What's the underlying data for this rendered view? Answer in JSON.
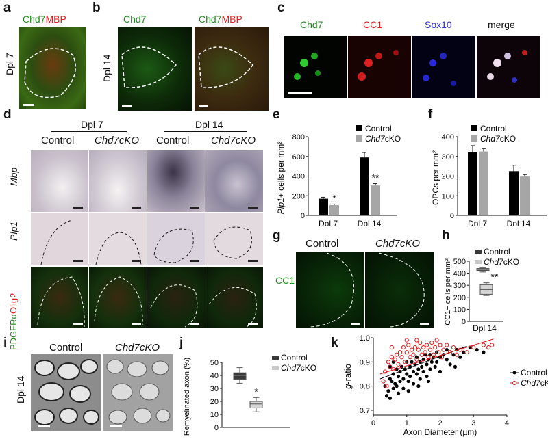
{
  "panels": {
    "a": {
      "letter": "a",
      "row_label": "Dpl 7",
      "stain_green": "Chd7",
      "stain_red": "MBP"
    },
    "b": {
      "letter": "b",
      "row_label": "Dpl 14",
      "left_title": "Chd7",
      "right_green": "Chd7",
      "right_red": "MBP"
    },
    "c": {
      "letter": "c",
      "titles": [
        "Chd7",
        "CC1",
        "Sox10",
        "merge"
      ]
    },
    "d": {
      "letter": "d",
      "group1": "Dpl 7",
      "group2": "Dpl 14",
      "cols": [
        "Control",
        "Chd7cKO",
        "Control",
        "Chd7cKO"
      ],
      "row_mbp": "Mbp",
      "row_plp1": "Plp1",
      "row_pdgfr_green": "PDGFRα",
      "row_pdgfr_red": "Olig2"
    },
    "e": {
      "letter": "e"
    },
    "f": {
      "letter": "f"
    },
    "g": {
      "letter": "g",
      "cols": [
        "Control",
        "Chd7cKO"
      ],
      "row_label": "CC1"
    },
    "h": {
      "letter": "h"
    },
    "i": {
      "letter": "i",
      "row_label": "Dpl 14",
      "cols": [
        "Control",
        "Chd7cKO"
      ]
    },
    "j": {
      "letter": "j"
    },
    "k": {
      "letter": "k"
    }
  },
  "colors": {
    "control": "#000000",
    "cko": "#a6a6a6",
    "green": "#1f8a1f",
    "red": "#e21b1b",
    "blue": "#2a2ad6",
    "k_cko": "#e0181b"
  },
  "chart_data": [
    {
      "id": "e",
      "type": "bar",
      "categories": [
        "Dpl 7",
        "Dpl 14"
      ],
      "series": [
        {
          "name": "Control",
          "values": [
            170,
            590
          ],
          "err": [
            15,
            50
          ]
        },
        {
          "name": "Chd7cKO",
          "values": [
            105,
            305
          ],
          "err": [
            10,
            18
          ]
        }
      ],
      "ylabel": "Plp1+ cells per mm²",
      "ylim": [
        0,
        800
      ],
      "yticks": [
        0,
        200,
        400,
        600,
        800
      ],
      "annotations": [
        "*",
        "**"
      ],
      "legend": "top-right"
    },
    {
      "id": "f",
      "type": "bar",
      "categories": [
        "Dpl 7",
        "Dpl 14"
      ],
      "series": [
        {
          "name": "Control",
          "values": [
            320,
            225
          ],
          "err": [
            35,
            30
          ]
        },
        {
          "name": "Chd7cKO",
          "values": [
            325,
            198
          ],
          "err": [
            15,
            10
          ]
        }
      ],
      "ylabel": "OPCs per mm²",
      "ylim": [
        0,
        400
      ],
      "yticks": [
        0,
        100,
        200,
        300,
        400
      ],
      "legend": "top-right"
    },
    {
      "id": "h",
      "type": "box",
      "categories": [
        "Dpl 14"
      ],
      "series": [
        {
          "name": "Control",
          "q1": 420,
          "median": 428,
          "q3": 440,
          "whisker_low": 410,
          "whisker_high": 445
        },
        {
          "name": "Chd7cKO",
          "q1": 225,
          "median": 265,
          "q3": 305,
          "whisker_low": 215,
          "whisker_high": 320
        }
      ],
      "ylabel": "CC1+ cells per mm²",
      "ylim": [
        0,
        500
      ],
      "yticks": [
        0,
        100,
        200,
        300,
        400,
        500
      ],
      "annotations": [
        "**"
      ],
      "legend": "top-right"
    },
    {
      "id": "j",
      "type": "box",
      "series": [
        {
          "name": "Control",
          "q1": 37,
          "median": 40,
          "q3": 42,
          "whisker_low": 34,
          "whisker_high": 46
        },
        {
          "name": "Chd7cKO",
          "q1": 15,
          "median": 18,
          "q3": 20,
          "whisker_low": 12,
          "whisker_high": 23
        }
      ],
      "ylabel": "Remyelinated axon (%)",
      "ylim": [
        0,
        50
      ],
      "yticks": [
        0,
        10,
        20,
        30,
        40,
        50
      ],
      "annotations": [
        "*"
      ],
      "legend": "top-right"
    },
    {
      "id": "k",
      "type": "scatter",
      "xlabel": "Axon Diameter (µm)",
      "ylabel": "g-ratio",
      "xlim": [
        0,
        4
      ],
      "ylim": [
        0.68,
        1.0
      ],
      "xticks": [
        0,
        1,
        2,
        3,
        4
      ],
      "yticks": [
        0.7,
        0.8,
        0.9,
        1.0
      ],
      "legend": "right",
      "series": [
        {
          "name": "Control",
          "marker": "filled",
          "trend": [
            [
              0.2,
              0.83
            ],
            [
              2.8,
              0.965
            ]
          ],
          "points": [
            [
              0.35,
              0.8
            ],
            [
              0.4,
              0.76
            ],
            [
              0.45,
              0.78
            ],
            [
              0.5,
              0.75
            ],
            [
              0.5,
              0.83
            ],
            [
              0.55,
              0.82
            ],
            [
              0.6,
              0.79
            ],
            [
              0.6,
              0.85
            ],
            [
              0.65,
              0.81
            ],
            [
              0.7,
              0.87
            ],
            [
              0.7,
              0.8
            ],
            [
              0.75,
              0.84
            ],
            [
              0.8,
              0.86
            ],
            [
              0.8,
              0.82
            ],
            [
              0.85,
              0.88
            ],
            [
              0.9,
              0.83
            ],
            [
              0.9,
              0.79
            ],
            [
              0.95,
              0.87
            ],
            [
              1.0,
              0.85
            ],
            [
              1.0,
              0.9
            ],
            [
              1.05,
              0.82
            ],
            [
              1.1,
              0.88
            ],
            [
              1.1,
              0.84
            ],
            [
              1.15,
              0.9
            ],
            [
              1.2,
              0.86
            ],
            [
              1.2,
              0.81
            ],
            [
              1.25,
              0.89
            ],
            [
              1.3,
              0.92
            ],
            [
              1.3,
              0.85
            ],
            [
              1.35,
              0.87
            ],
            [
              1.4,
              0.9
            ],
            [
              1.4,
              0.83
            ],
            [
              1.45,
              0.88
            ],
            [
              1.5,
              0.91
            ],
            [
              1.5,
              0.86
            ],
            [
              1.55,
              0.93
            ],
            [
              1.6,
              0.89
            ],
            [
              1.6,
              0.84
            ],
            [
              1.65,
              0.91
            ],
            [
              1.7,
              0.93
            ],
            [
              1.7,
              0.87
            ],
            [
              1.75,
              0.9
            ],
            [
              1.8,
              0.92
            ],
            [
              1.85,
              0.88
            ],
            [
              1.9,
              0.94
            ],
            [
              1.9,
              0.9
            ],
            [
              2.0,
              0.92
            ],
            [
              2.0,
              0.86
            ],
            [
              2.1,
              0.93
            ],
            [
              2.2,
              0.91
            ],
            [
              2.2,
              0.95
            ],
            [
              2.3,
              0.89
            ],
            [
              2.4,
              0.93
            ],
            [
              2.5,
              0.95
            ],
            [
              2.6,
              0.92
            ],
            [
              2.7,
              0.94
            ],
            [
              2.9,
              0.96
            ],
            [
              3.1,
              0.95
            ],
            [
              3.3,
              0.94
            ],
            [
              0.5,
              0.88
            ],
            [
              0.6,
              0.9
            ],
            [
              0.75,
              0.77
            ],
            [
              1.05,
              0.78
            ],
            [
              1.35,
              0.8
            ],
            [
              1.65,
              0.82
            ],
            [
              2.45,
              0.88
            ]
          ]
        },
        {
          "name": "Chd7cKO",
          "marker": "open",
          "trend": [
            [
              0.2,
              0.85
            ],
            [
              3.6,
              0.995
            ]
          ],
          "points": [
            [
              0.3,
              0.82
            ],
            [
              0.35,
              0.86
            ],
            [
              0.45,
              0.9
            ],
            [
              0.5,
              0.88
            ],
            [
              0.55,
              0.92
            ],
            [
              0.6,
              0.87
            ],
            [
              0.65,
              0.91
            ],
            [
              0.7,
              0.93
            ],
            [
              0.75,
              0.89
            ],
            [
              0.8,
              0.94
            ],
            [
              0.85,
              0.92
            ],
            [
              0.9,
              0.96
            ],
            [
              0.95,
              0.9
            ],
            [
              1.0,
              0.94
            ],
            [
              1.05,
              0.97
            ],
            [
              1.1,
              0.92
            ],
            [
              1.15,
              0.95
            ],
            [
              1.2,
              0.93
            ],
            [
              1.25,
              0.96
            ],
            [
              1.3,
              0.91
            ],
            [
              1.35,
              0.95
            ],
            [
              1.4,
              0.98
            ],
            [
              1.45,
              0.93
            ],
            [
              1.5,
              0.96
            ],
            [
              1.55,
              0.94
            ],
            [
              1.6,
              0.97
            ],
            [
              1.65,
              0.92
            ],
            [
              1.7,
              0.95
            ],
            [
              1.75,
              0.98
            ],
            [
              1.8,
              0.93
            ],
            [
              1.85,
              0.96
            ],
            [
              1.9,
              0.99
            ],
            [
              1.95,
              0.94
            ],
            [
              2.0,
              0.97
            ],
            [
              2.05,
              0.92
            ],
            [
              2.1,
              0.95
            ],
            [
              2.2,
              0.97
            ],
            [
              2.3,
              0.94
            ],
            [
              2.4,
              0.96
            ],
            [
              2.5,
              0.93
            ],
            [
              2.6,
              0.95
            ],
            [
              2.8,
              0.94
            ],
            [
              3.0,
              0.96
            ],
            [
              3.3,
              0.97
            ],
            [
              3.45,
              0.96
            ],
            [
              3.55,
              0.97
            ],
            [
              0.4,
              0.8
            ],
            [
              0.55,
              0.96
            ],
            [
              1.0,
              0.99
            ],
            [
              1.3,
              0.99
            ]
          ]
        }
      ]
    }
  ]
}
